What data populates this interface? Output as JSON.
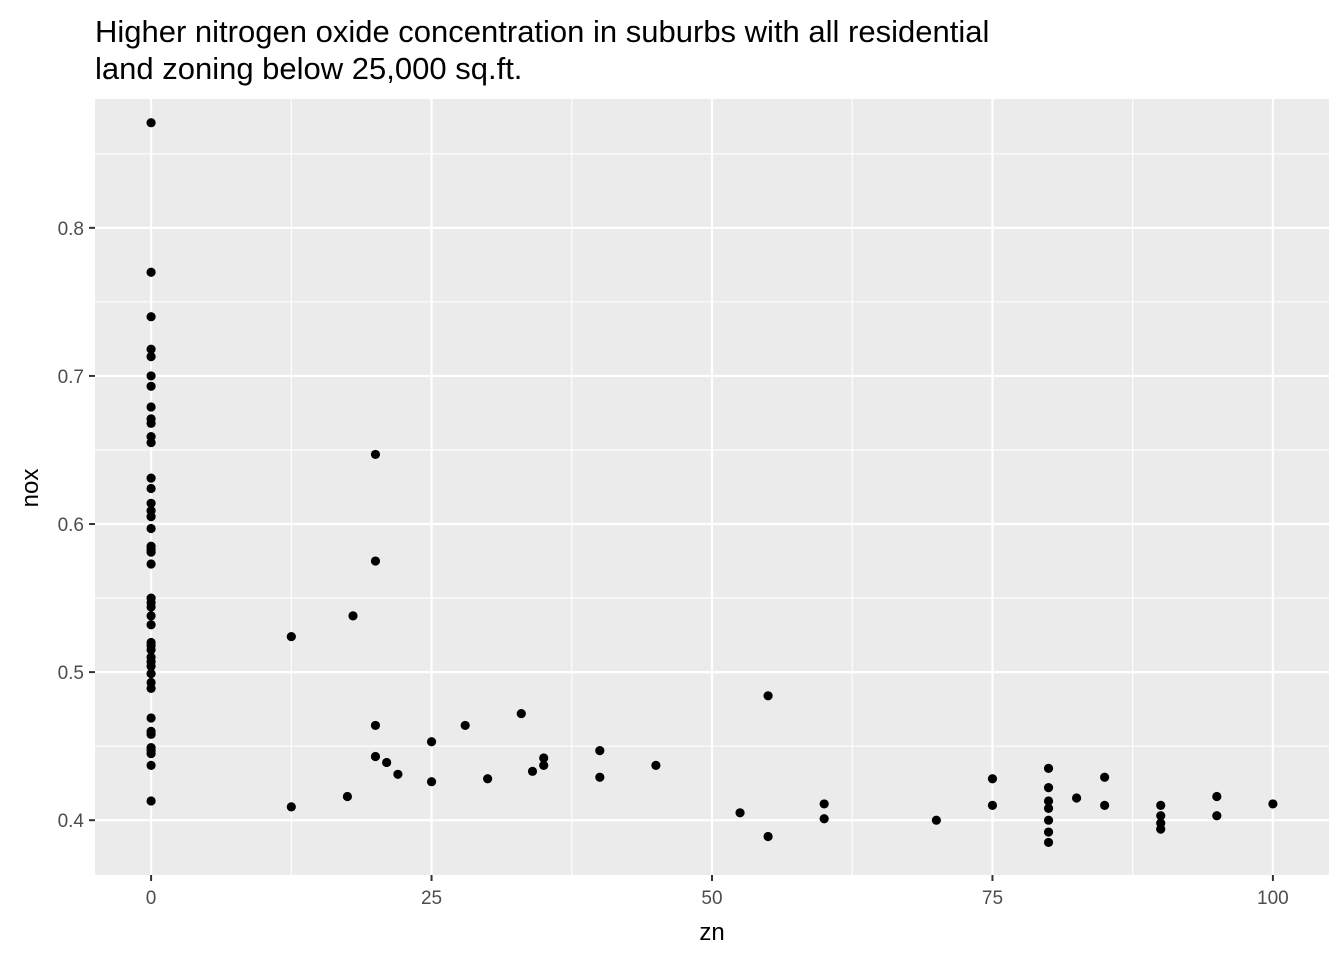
{
  "chart_data": {
    "type": "scatter",
    "title": "Higher nitrogen oxide concentration in suburbs with all residential",
    "subtitle": "land zoning below 25,000 sq.ft.",
    "xlabel": "zn",
    "ylabel": "nox",
    "xlim": [
      -5,
      105
    ],
    "ylim": [
      0.363,
      0.887
    ],
    "x_ticks": [
      0,
      25,
      50,
      75,
      100
    ],
    "x_tick_labels": [
      "0",
      "25",
      "50",
      "75",
      "100"
    ],
    "y_ticks": [
      0.4,
      0.5,
      0.6,
      0.7,
      0.8
    ],
    "y_tick_labels": [
      "0.4",
      "0.5",
      "0.6",
      "0.7",
      "0.8"
    ],
    "grid": true,
    "panel_color": "#ebebeb",
    "point_color": "#000000",
    "points": [
      {
        "x": 0,
        "y": 0.871
      },
      {
        "x": 0,
        "y": 0.77
      },
      {
        "x": 0,
        "y": 0.74
      },
      {
        "x": 0,
        "y": 0.718
      },
      {
        "x": 0,
        "y": 0.713
      },
      {
        "x": 0,
        "y": 0.7
      },
      {
        "x": 0,
        "y": 0.693
      },
      {
        "x": 0,
        "y": 0.679
      },
      {
        "x": 0,
        "y": 0.671
      },
      {
        "x": 0,
        "y": 0.668
      },
      {
        "x": 0,
        "y": 0.659
      },
      {
        "x": 0,
        "y": 0.655
      },
      {
        "x": 0,
        "y": 0.631
      },
      {
        "x": 0,
        "y": 0.624
      },
      {
        "x": 0,
        "y": 0.614
      },
      {
        "x": 0,
        "y": 0.609
      },
      {
        "x": 0,
        "y": 0.605
      },
      {
        "x": 0,
        "y": 0.597
      },
      {
        "x": 0,
        "y": 0.585
      },
      {
        "x": 0,
        "y": 0.583
      },
      {
        "x": 0,
        "y": 0.581
      },
      {
        "x": 0,
        "y": 0.573
      },
      {
        "x": 0,
        "y": 0.55
      },
      {
        "x": 0,
        "y": 0.547
      },
      {
        "x": 0,
        "y": 0.544
      },
      {
        "x": 0,
        "y": 0.538
      },
      {
        "x": 0,
        "y": 0.532
      },
      {
        "x": 0,
        "y": 0.52
      },
      {
        "x": 0,
        "y": 0.518
      },
      {
        "x": 0,
        "y": 0.515
      },
      {
        "x": 0,
        "y": 0.51
      },
      {
        "x": 0,
        "y": 0.507
      },
      {
        "x": 0,
        "y": 0.504
      },
      {
        "x": 0,
        "y": 0.499
      },
      {
        "x": 0,
        "y": 0.493
      },
      {
        "x": 0,
        "y": 0.489
      },
      {
        "x": 0,
        "y": 0.469
      },
      {
        "x": 0,
        "y": 0.46
      },
      {
        "x": 0,
        "y": 0.458
      },
      {
        "x": 0,
        "y": 0.449
      },
      {
        "x": 0,
        "y": 0.447
      },
      {
        "x": 0,
        "y": 0.445
      },
      {
        "x": 0,
        "y": 0.437
      },
      {
        "x": 0,
        "y": 0.413
      },
      {
        "x": 12.5,
        "y": 0.524
      },
      {
        "x": 12.5,
        "y": 0.409
      },
      {
        "x": 17.5,
        "y": 0.416
      },
      {
        "x": 18,
        "y": 0.538
      },
      {
        "x": 20,
        "y": 0.647
      },
      {
        "x": 20,
        "y": 0.575
      },
      {
        "x": 20,
        "y": 0.464
      },
      {
        "x": 20,
        "y": 0.443
      },
      {
        "x": 21,
        "y": 0.439
      },
      {
        "x": 22,
        "y": 0.431
      },
      {
        "x": 25,
        "y": 0.453
      },
      {
        "x": 25,
        "y": 0.426
      },
      {
        "x": 28,
        "y": 0.464
      },
      {
        "x": 30,
        "y": 0.428
      },
      {
        "x": 33,
        "y": 0.472
      },
      {
        "x": 34,
        "y": 0.433
      },
      {
        "x": 35,
        "y": 0.442
      },
      {
        "x": 35,
        "y": 0.437
      },
      {
        "x": 40,
        "y": 0.447
      },
      {
        "x": 40,
        "y": 0.429
      },
      {
        "x": 45,
        "y": 0.437
      },
      {
        "x": 52.5,
        "y": 0.405
      },
      {
        "x": 55,
        "y": 0.484
      },
      {
        "x": 55,
        "y": 0.389
      },
      {
        "x": 60,
        "y": 0.411
      },
      {
        "x": 60,
        "y": 0.401
      },
      {
        "x": 70,
        "y": 0.4
      },
      {
        "x": 75,
        "y": 0.428
      },
      {
        "x": 75,
        "y": 0.41
      },
      {
        "x": 80,
        "y": 0.435
      },
      {
        "x": 80,
        "y": 0.422
      },
      {
        "x": 80,
        "y": 0.413
      },
      {
        "x": 80,
        "y": 0.408
      },
      {
        "x": 80,
        "y": 0.4
      },
      {
        "x": 80,
        "y": 0.392
      },
      {
        "x": 80,
        "y": 0.385
      },
      {
        "x": 82.5,
        "y": 0.415
      },
      {
        "x": 85,
        "y": 0.429
      },
      {
        "x": 85,
        "y": 0.41
      },
      {
        "x": 90,
        "y": 0.41
      },
      {
        "x": 90,
        "y": 0.403
      },
      {
        "x": 90,
        "y": 0.398
      },
      {
        "x": 90,
        "y": 0.394
      },
      {
        "x": 95,
        "y": 0.416
      },
      {
        "x": 95,
        "y": 0.403
      },
      {
        "x": 100,
        "y": 0.411
      }
    ]
  }
}
